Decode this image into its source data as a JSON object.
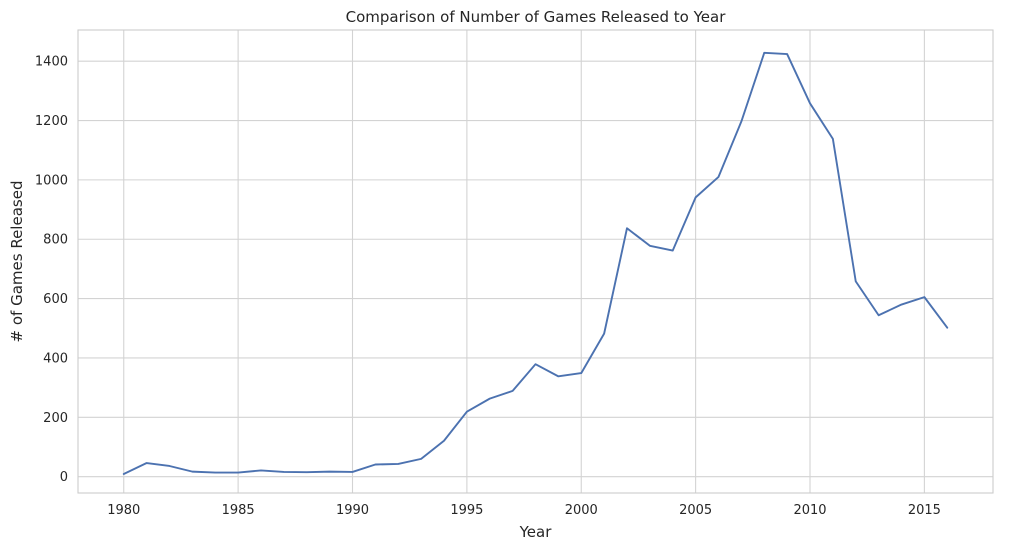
{
  "chart_data": {
    "type": "line",
    "title": "Comparison of Number of Games Released to Year",
    "xlabel": "Year",
    "ylabel": "# of Games Released",
    "xlim": [
      1978,
      2018
    ],
    "ylim": [
      -55,
      1505
    ],
    "xticks": [
      1980,
      1985,
      1990,
      1995,
      2000,
      2005,
      2010,
      2015
    ],
    "yticks": [
      0,
      200,
      400,
      600,
      800,
      1000,
      1200,
      1400
    ],
    "grid": true,
    "series": [
      {
        "color": "#4c72b0",
        "x": [
          1980,
          1981,
          1982,
          1983,
          1984,
          1985,
          1986,
          1987,
          1988,
          1989,
          1990,
          1991,
          1992,
          1993,
          1994,
          1995,
          1996,
          1997,
          1998,
          1999,
          2000,
          2001,
          2002,
          2003,
          2004,
          2005,
          2006,
          2007,
          2008,
          2009,
          2010,
          2011,
          2012,
          2013,
          2014,
          2015,
          2016
        ],
        "y": [
          9,
          46,
          36,
          17,
          14,
          14,
          21,
          16,
          15,
          17,
          16,
          41,
          43,
          60,
          121,
          219,
          263,
          289,
          379,
          338,
          349,
          482,
          837,
          778,
          762,
          941,
          1010,
          1197,
          1428,
          1424,
          1258,
          1138,
          658,
          544,
          580,
          605,
          502
        ]
      }
    ]
  }
}
